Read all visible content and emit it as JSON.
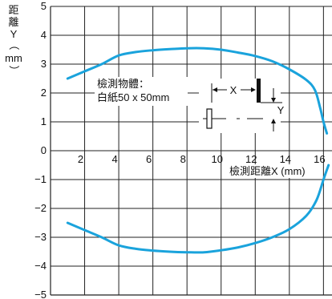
{
  "chart_data": {
    "type": "line",
    "xlim": [
      0,
      16.5
    ],
    "ylim": [
      -5,
      5
    ],
    "x_ticks": [
      "2",
      "4",
      "6",
      "8",
      "10",
      "12",
      "14",
      "16"
    ],
    "y_ticks": [
      "5",
      "4",
      "3",
      "2",
      "1",
      "0",
      "−1",
      "−2",
      "−3",
      "−4",
      "−5"
    ],
    "ylabel_chars": [
      "距",
      "離",
      "Y",
      "（",
      "mm",
      "）"
    ],
    "xlabel": "檢測距離X (mm)",
    "annotation_lines": [
      "檢測物體：",
      "白紙50 x 50mm"
    ],
    "diagram_labels": {
      "x": "X",
      "y": "Y"
    },
    "grid": true,
    "line_color": "#1aa3dc",
    "series": [
      {
        "values": [
          [
            1.0,
            2.5
          ],
          [
            2.0,
            2.75
          ],
          [
            3.0,
            3.0
          ],
          [
            4.0,
            3.3
          ],
          [
            5.0,
            3.42
          ],
          [
            6.0,
            3.48
          ],
          [
            7.0,
            3.52
          ],
          [
            8.0,
            3.55
          ],
          [
            9.0,
            3.55
          ],
          [
            10.0,
            3.5
          ],
          [
            11.0,
            3.4
          ],
          [
            12.0,
            3.28
          ],
          [
            13.0,
            3.1
          ],
          [
            14.0,
            2.82
          ],
          [
            15.0,
            2.45
          ],
          [
            15.5,
            2.1
          ],
          [
            15.8,
            1.5
          ],
          [
            16.0,
            1.0
          ],
          [
            16.2,
            0.6
          ]
        ]
      },
      {
        "values": [
          [
            1.0,
            -2.5
          ],
          [
            2.0,
            -2.75
          ],
          [
            3.0,
            -3.0
          ],
          [
            4.0,
            -3.28
          ],
          [
            5.0,
            -3.4
          ],
          [
            6.0,
            -3.46
          ],
          [
            7.0,
            -3.5
          ],
          [
            8.0,
            -3.52
          ],
          [
            9.0,
            -3.52
          ],
          [
            10.0,
            -3.45
          ],
          [
            11.0,
            -3.35
          ],
          [
            12.0,
            -3.2
          ],
          [
            13.0,
            -3.0
          ],
          [
            14.0,
            -2.72
          ],
          [
            15.0,
            -2.25
          ],
          [
            15.6,
            -1.7
          ],
          [
            16.0,
            -1.0
          ],
          [
            16.3,
            -0.5
          ]
        ]
      }
    ]
  }
}
